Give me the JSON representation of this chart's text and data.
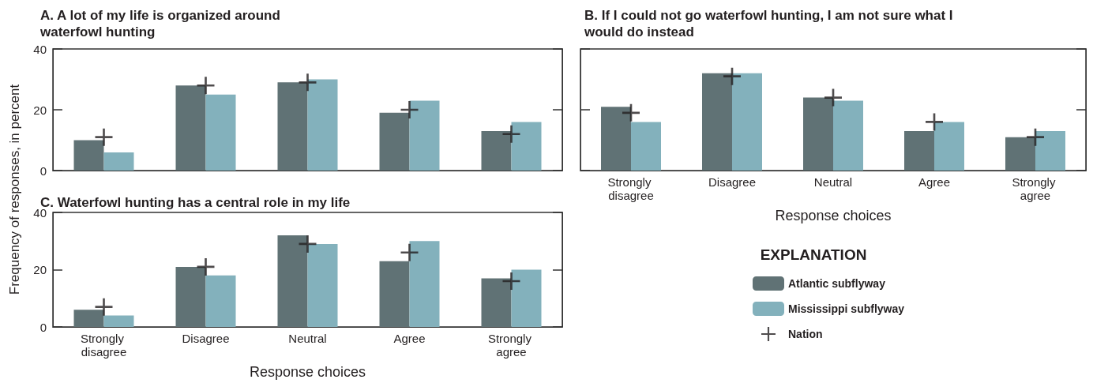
{
  "chart_data": [
    {
      "type": "bar",
      "title": "A. A lot of my life is organized around waterfowl hunting",
      "ylabel": "Frequency of responses, in percent",
      "categories": [
        "Strongly disagree",
        "Disagree",
        "Neutral",
        "Agree",
        "Strongly agree"
      ],
      "ylim": [
        0,
        40
      ],
      "yticks": [
        0,
        20,
        40
      ],
      "tick_labels": "y",
      "grid": false,
      "series": [
        {
          "color": "#607275",
          "values": [
            10,
            28,
            29,
            19,
            13
          ]
        },
        {
          "color": "#83b1bc",
          "values": [
            6,
            25,
            30,
            23,
            16
          ]
        },
        {
          "type": "scatter",
          "marker": "cross",
          "color": "#231f20",
          "values": [
            11,
            28,
            29,
            20,
            12
          ]
        }
      ]
    },
    {
      "type": "bar",
      "title": "B. If I could not go waterfowl hunting, I am not sure what I would do instead",
      "xlabel": "Response choices",
      "categories": [
        "Strongly disagree",
        "Disagree",
        "Neutral",
        "Agree",
        "Strongly agree"
      ],
      "ylim": [
        0,
        40
      ],
      "yticks": [
        0,
        20,
        40
      ],
      "tick_labels": "x",
      "grid": false,
      "legend": "bottom right",
      "legend_title": "EXPLANATION",
      "series": [
        {
          "name": "Atlantic subflyway",
          "color": "#607275",
          "values": [
            21,
            32,
            24,
            13,
            11
          ]
        },
        {
          "name": "Mississippi subflyway",
          "color": "#83b1bc",
          "values": [
            16,
            32,
            23,
            16,
            13
          ]
        },
        {
          "name": "Nation",
          "type": "scatter",
          "marker": "cross",
          "color": "#231f20",
          "values": [
            19,
            31,
            24,
            16,
            11
          ]
        }
      ]
    },
    {
      "type": "bar",
      "title": "C. Waterfowl hunting has a central role in my life",
      "xlabel": "Response choices",
      "categories": [
        "Strongly disagree",
        "Disagree",
        "Neutral",
        "Agree",
        "Strongly agree"
      ],
      "ylim": [
        0,
        40
      ],
      "yticks": [
        0,
        20,
        40
      ],
      "grid": false,
      "series": [
        {
          "color": "#607275",
          "values": [
            6,
            21,
            32,
            23,
            17
          ]
        },
        {
          "color": "#83b1bc",
          "values": [
            4,
            18,
            29,
            30,
            20
          ]
        },
        {
          "type": "scatter",
          "marker": "cross",
          "color": "#231f20",
          "values": [
            7,
            21,
            29,
            26,
            16
          ]
        }
      ]
    }
  ]
}
